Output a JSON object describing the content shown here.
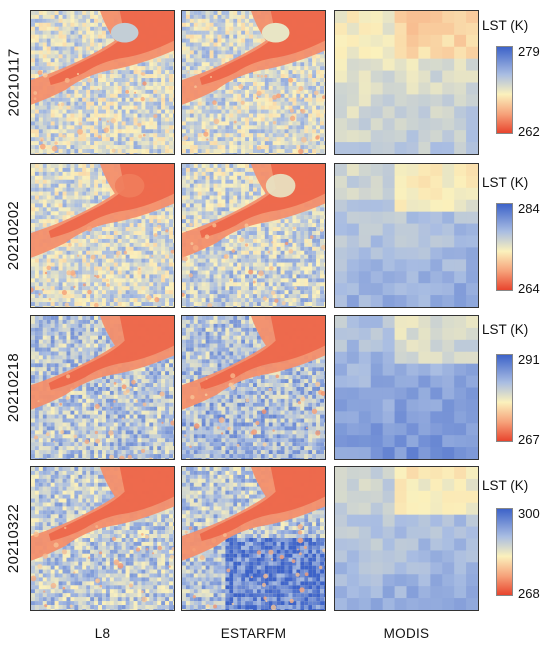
{
  "rows": [
    {
      "date": "20210117",
      "legend_title": "LST (K)",
      "max": "279",
      "min": "262"
    },
    {
      "date": "20210202",
      "legend_title": "LST (K)",
      "max": "284",
      "min": "264"
    },
    {
      "date": "20210218",
      "legend_title": "LST (K)",
      "max": "291",
      "min": "267"
    },
    {
      "date": "20210322",
      "legend_title": "LST (K)",
      "max": "300",
      "min": "268"
    }
  ],
  "columns": [
    "L8",
    "ESTARFM",
    "MODIS"
  ],
  "colormap": {
    "high": "#3d63c9",
    "mid_high": "#a9bde2",
    "mid": "#fbf1bc",
    "mid_low": "#f6a27a",
    "low": "#e8452e"
  }
}
